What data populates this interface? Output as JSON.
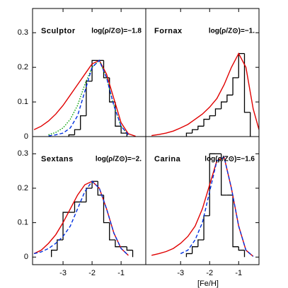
{
  "chart_data": [
    {
      "type": "histogram",
      "title": "Sculptor",
      "annotation": "log(ρ/Z⊙)=−1.8",
      "xlim": [
        -4.05,
        -0.15
      ],
      "ylim": [
        0,
        0.37
      ],
      "yticks": [
        0,
        0.1,
        0.2,
        0.3
      ],
      "bins": [
        -2.8,
        -2.6,
        -2.4,
        -2.2,
        -2.0,
        -1.8,
        -1.6,
        -1.4,
        -1.2,
        -1.0,
        -0.8
      ],
      "counts": [
        0.005,
        0.02,
        0.06,
        0.16,
        0.22,
        0.22,
        0.17,
        0.1,
        0.03,
        0.01
      ],
      "color": "#000000",
      "series": [
        {
          "color": "#e00000",
          "style": "solid",
          "x": [
            -4,
            -3.75,
            -3.5,
            -3.25,
            -3,
            -2.75,
            -2.5,
            -2.25,
            -2,
            -1.75,
            -1.5,
            -1.25,
            -1,
            -0.75,
            -0.5
          ],
          "values": [
            0.02,
            0.03,
            0.045,
            0.065,
            0.09,
            0.12,
            0.15,
            0.18,
            0.21,
            0.22,
            0.18,
            0.11,
            0.04,
            0.008,
            0.001
          ]
        },
        {
          "color": "#00a000",
          "style": "dotted",
          "x": [
            -3.5,
            -3.25,
            -3,
            -2.75,
            -2.5,
            -2.25,
            -2,
            -1.75,
            -1.5,
            -1.25,
            -1,
            -0.75
          ],
          "values": [
            0.005,
            0.012,
            0.025,
            0.05,
            0.09,
            0.15,
            0.2,
            0.22,
            0.17,
            0.09,
            0.03,
            0.005
          ]
        },
        {
          "color": "#0030e0",
          "style": "dashed",
          "x": [
            -3.5,
            -3.25,
            -3,
            -2.75,
            -2.5,
            -2.25,
            -2,
            -1.75,
            -1.5,
            -1.25,
            -1,
            -0.75
          ],
          "values": [
            0.002,
            0.005,
            0.01,
            0.025,
            0.06,
            0.13,
            0.2,
            0.22,
            0.17,
            0.09,
            0.03,
            0.005
          ]
        }
      ]
    },
    {
      "type": "histogram",
      "title": "Fornax",
      "annotation": "log(ρ/Z⊙)=−1.",
      "xlim": [
        -4.2,
        -0.3
      ],
      "ylim": [
        0,
        0.37
      ],
      "bins": [
        -2.8,
        -2.6,
        -2.4,
        -2.2,
        -2.0,
        -1.8,
        -1.6,
        -1.4,
        -1.2,
        -1.0,
        -0.8,
        -0.6
      ],
      "counts": [
        0.01,
        0.02,
        0.03,
        0.05,
        0.06,
        0.08,
        0.1,
        0.12,
        0.17,
        0.24,
        0.07
      ],
      "color": "#000000",
      "series": [
        {
          "color": "#e00000",
          "style": "solid",
          "x": [
            -4,
            -3.75,
            -3.5,
            -3.25,
            -3,
            -2.75,
            -2.5,
            -2.25,
            -2,
            -1.75,
            -1.5,
            -1.25,
            -1,
            -0.75,
            -0.5,
            -0.3
          ],
          "values": [
            0.003,
            0.006,
            0.01,
            0.016,
            0.025,
            0.035,
            0.05,
            0.065,
            0.085,
            0.11,
            0.15,
            0.2,
            0.24,
            0.2,
            0.08,
            0.02
          ]
        }
      ]
    },
    {
      "type": "histogram",
      "title": "Sextans",
      "annotation": "log(ρ/Z⊙)=−2.",
      "xlim": [
        -4.05,
        -0.15
      ],
      "ylim": [
        -0.022,
        0.35
      ],
      "yticks": [
        0,
        0.1,
        0.2,
        0.3
      ],
      "xticks": [
        -3,
        -2,
        -1
      ],
      "bins": [
        -3.4,
        -3.2,
        -3.0,
        -2.8,
        -2.6,
        -2.4,
        -2.2,
        -2.0,
        -1.8,
        -1.6,
        -1.4,
        -1.2,
        -1.0,
        -0.8,
        -0.6
      ],
      "counts": [
        0.02,
        0.05,
        0.13,
        0.13,
        0.16,
        0.16,
        0.2,
        0.22,
        0.18,
        0.1,
        0.05,
        0.03,
        0.03,
        0.02
      ],
      "color": "#000000",
      "series": [
        {
          "color": "#e00000",
          "style": "solid",
          "x": [
            -4,
            -3.75,
            -3.5,
            -3.25,
            -3,
            -2.75,
            -2.5,
            -2.25,
            -2,
            -1.75,
            -1.5,
            -1.25,
            -1,
            -0.75
          ],
          "values": [
            0.01,
            0.02,
            0.04,
            0.065,
            0.1,
            0.14,
            0.18,
            0.21,
            0.22,
            0.2,
            0.14,
            0.07,
            0.025,
            0.005
          ]
        },
        {
          "color": "#0030e0",
          "style": "dashed",
          "x": [
            -4,
            -3.75,
            -3.5,
            -3.25,
            -3,
            -2.75,
            -2.5,
            -2.25,
            -2,
            -1.75,
            -1.5,
            -1.25,
            -1,
            -0.75
          ],
          "values": [
            0.01,
            0.015,
            0.025,
            0.04,
            0.06,
            0.09,
            0.14,
            0.19,
            0.22,
            0.2,
            0.14,
            0.07,
            0.025,
            0.005
          ]
        }
      ]
    },
    {
      "type": "histogram",
      "title": "Carina",
      "annotation": "log(ρ/Z⊙)=−1.6",
      "xlim": [
        -4.2,
        -0.3
      ],
      "ylim": [
        -0.022,
        0.35
      ],
      "xticks": [
        -3,
        -2,
        -1
      ],
      "xlabel": "[Fe/H]",
      "bins": [
        -2.8,
        -2.6,
        -2.4,
        -2.2,
        -2.0,
        -1.8,
        -1.6,
        -1.4,
        -1.2,
        -1.0,
        -0.8
      ],
      "counts": [
        0.01,
        0.03,
        0.05,
        0.12,
        0.3,
        0.3,
        0.18,
        0.18,
        0.03,
        0.02
      ],
      "color": "#000000",
      "series": [
        {
          "color": "#e00000",
          "style": "solid",
          "x": [
            -4,
            -3.75,
            -3.5,
            -3.25,
            -3,
            -2.75,
            -2.5,
            -2.25,
            -2,
            -1.75,
            -1.5,
            -1.25,
            -1,
            -0.75,
            -0.5
          ],
          "values": [
            0.005,
            0.01,
            0.016,
            0.025,
            0.04,
            0.06,
            0.09,
            0.14,
            0.21,
            0.28,
            0.29,
            0.2,
            0.09,
            0.02,
            0.002
          ]
        },
        {
          "color": "#0030e0",
          "style": "dashed",
          "x": [
            -3,
            -2.75,
            -2.5,
            -2.25,
            -2,
            -1.75,
            -1.5,
            -1.25,
            -1,
            -0.75,
            -0.5
          ],
          "values": [
            0.01,
            0.02,
            0.05,
            0.1,
            0.19,
            0.28,
            0.29,
            0.2,
            0.09,
            0.02,
            0.002
          ]
        }
      ]
    }
  ]
}
